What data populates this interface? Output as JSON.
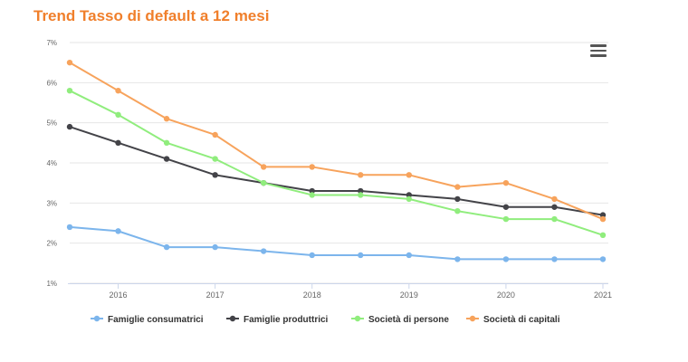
{
  "chart_data": {
    "type": "line",
    "title": "Trend Tasso di default a 12 mesi",
    "x": [
      2015.5,
      2016,
      2016.5,
      2017,
      2017.5,
      2018,
      2018.5,
      2019,
      2019.5,
      2020,
      2020.5,
      2021
    ],
    "x_ticks": [
      "2016",
      "2017",
      "2018",
      "2019",
      "2020",
      "2021"
    ],
    "x_tick_values": [
      2016,
      2017,
      2018,
      2019,
      2020,
      2021
    ],
    "y_ticks": [
      "1%",
      "2%",
      "3%",
      "4%",
      "5%",
      "6%",
      "7%"
    ],
    "y_tick_values": [
      1,
      2,
      3,
      4,
      5,
      6,
      7
    ],
    "xlim": [
      2015.5,
      2021
    ],
    "ylim": [
      1,
      7
    ],
    "grid": true,
    "legend_position": "bottom",
    "series": [
      {
        "name": "Famiglie consumatrici",
        "color": "#7cb5ec",
        "values": [
          2.4,
          2.3,
          1.9,
          1.9,
          1.8,
          1.7,
          1.7,
          1.7,
          1.6,
          1.6,
          1.6,
          1.6
        ]
      },
      {
        "name": "Famiglie produttrici",
        "color": "#434348",
        "values": [
          4.9,
          4.5,
          4.1,
          3.7,
          3.5,
          3.3,
          3.3,
          3.2,
          3.1,
          2.9,
          2.9,
          2.7
        ]
      },
      {
        "name": "Società di persone",
        "color": "#90ed7d",
        "values": [
          5.8,
          5.2,
          4.5,
          4.1,
          3.5,
          3.2,
          3.2,
          3.1,
          2.8,
          2.6,
          2.6,
          2.2
        ]
      },
      {
        "name": "Società di capitali",
        "color": "#f7a35c",
        "values": [
          6.5,
          5.8,
          5.1,
          4.7,
          3.9,
          3.9,
          3.7,
          3.7,
          3.4,
          3.5,
          3.1,
          2.6
        ]
      }
    ]
  },
  "menu_icon": "hamburger-menu-icon"
}
